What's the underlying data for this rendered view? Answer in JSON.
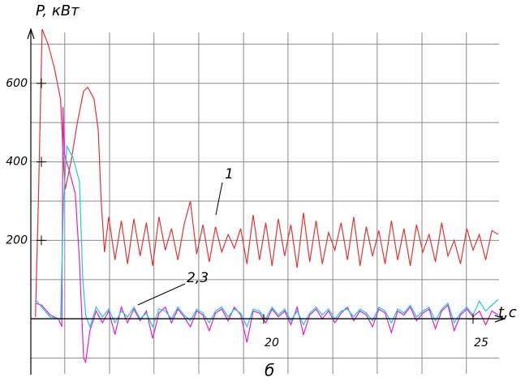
{
  "chart_data": {
    "type": "line",
    "y_label": "P, кВт",
    "x_label": "t,c",
    "annotations": [
      "1",
      "2,3",
      "б"
    ],
    "xlim": [
      14.44,
      25.62
    ],
    "ylim": [
      -140,
      740
    ],
    "xticks": [
      20,
      25
    ],
    "yticks": [
      200,
      400,
      600
    ],
    "xgrid": [
      15.25,
      16.32,
      17.38,
      18.45,
      19.52,
      20.58,
      21.65,
      22.71,
      23.78,
      24.84
    ],
    "ygrid": [
      -100,
      0,
      100,
      200,
      300,
      400,
      500,
      600,
      700
    ],
    "grid": true,
    "series": [
      {
        "color": "#e03535",
        "x": [
          14.55,
          14.62,
          14.71,
          14.85,
          15.0,
          15.15,
          15.22,
          15.26,
          15.4,
          15.55,
          15.7,
          15.8,
          15.95,
          16.05,
          16.12,
          16.2,
          16.3,
          16.45,
          16.6,
          16.75,
          16.9,
          17.05,
          17.2,
          17.35,
          17.5,
          17.65,
          17.8,
          17.95,
          18.1,
          18.25,
          18.4,
          18.55,
          18.7,
          18.85,
          19.0,
          19.15,
          19.3,
          19.45,
          19.6,
          19.75,
          19.9,
          20.05,
          20.2,
          20.35,
          20.5,
          20.65,
          20.8,
          20.95,
          21.1,
          21.25,
          21.4,
          21.55,
          21.7,
          21.85,
          22.0,
          22.15,
          22.3,
          22.45,
          22.6,
          22.75,
          22.9,
          23.05,
          23.2,
          23.35,
          23.5,
          23.65,
          23.8,
          23.95,
          24.1,
          24.25,
          24.4,
          24.55,
          24.7,
          24.85,
          25.0,
          25.15,
          25.3,
          25.45,
          25.6
        ],
        "values": [
          5,
          300,
          738,
          700,
          640,
          560,
          400,
          330,
          400,
          500,
          580,
          590,
          560,
          480,
          300,
          170,
          260,
          150,
          250,
          140,
          255,
          160,
          245,
          135,
          260,
          175,
          230,
          150,
          240,
          300,
          165,
          240,
          145,
          235,
          170,
          215,
          180,
          230,
          140,
          265,
          150,
          245,
          135,
          255,
          160,
          240,
          130,
          270,
          145,
          250,
          140,
          220,
          175,
          245,
          150,
          260,
          135,
          235,
          160,
          225,
          140,
          250,
          150,
          230,
          135,
          240,
          170,
          215,
          145,
          245,
          160,
          200,
          140,
          230,
          175,
          215,
          150,
          225,
          215
        ]
      },
      {
        "color": "#e020d0",
        "x": [
          14.55,
          14.7,
          14.9,
          15.1,
          15.18,
          15.21,
          15.24,
          15.35,
          15.5,
          15.6,
          15.7,
          15.75,
          15.85,
          16.0,
          16.15,
          16.3,
          16.45,
          16.6,
          16.75,
          16.9,
          17.05,
          17.2,
          17.35,
          17.5,
          17.65,
          17.8,
          17.95,
          18.1,
          18.25,
          18.4,
          18.55,
          18.7,
          18.85,
          19.0,
          19.15,
          19.3,
          19.45,
          19.6,
          19.75,
          19.9,
          20.05,
          20.2,
          20.35,
          20.5,
          20.65,
          20.8,
          20.95,
          21.1,
          21.25,
          21.4,
          21.55,
          21.7,
          21.85,
          22.0,
          22.15,
          22.3,
          22.45,
          22.6,
          22.75,
          22.9,
          23.05,
          23.2,
          23.35,
          23.5,
          23.65,
          23.8,
          23.95,
          24.1,
          24.25,
          24.4,
          24.55,
          24.7,
          24.85,
          25.0,
          25.15,
          25.3,
          25.45,
          25.6
        ],
        "values": [
          40,
          35,
          10,
          0,
          -20,
          540,
          420,
          380,
          320,
          150,
          -100,
          -110,
          -30,
          20,
          -10,
          20,
          -40,
          30,
          -10,
          25,
          -5,
          20,
          -50,
          15,
          30,
          -10,
          25,
          5,
          -20,
          20,
          10,
          -30,
          15,
          25,
          -5,
          30,
          10,
          -60,
          20,
          15,
          -10,
          25,
          5,
          20,
          -15,
          30,
          -40,
          10,
          25,
          0,
          20,
          -10,
          15,
          30,
          -5,
          20,
          10,
          -20,
          25,
          15,
          -35,
          20,
          10,
          30,
          -5,
          15,
          25,
          -25,
          20,
          35,
          -30,
          10,
          25,
          5,
          20,
          -15,
          20,
          10
        ]
      },
      {
        "color": "#20c8e0",
        "x": [
          14.55,
          14.7,
          14.9,
          15.15,
          15.22,
          15.3,
          15.45,
          15.6,
          15.68,
          15.75,
          15.85,
          16.0,
          16.15,
          16.3,
          16.45,
          16.6,
          16.75,
          16.9,
          17.05,
          17.2,
          17.35,
          17.5,
          17.65,
          17.8,
          17.95,
          18.1,
          18.25,
          18.4,
          18.55,
          18.7,
          18.85,
          19.0,
          19.15,
          19.3,
          19.45,
          19.6,
          19.75,
          19.9,
          20.05,
          20.2,
          20.35,
          20.5,
          20.65,
          20.8,
          20.95,
          21.1,
          21.25,
          21.4,
          21.55,
          21.7,
          21.85,
          22.0,
          22.15,
          22.3,
          22.45,
          22.6,
          22.75,
          22.9,
          23.05,
          23.2,
          23.35,
          23.5,
          23.65,
          23.8,
          23.95,
          24.1,
          24.25,
          24.4,
          24.55,
          24.7,
          24.85,
          25.0,
          25.15,
          25.3,
          25.45,
          25.6
        ],
        "values": [
          50,
          30,
          5,
          0,
          300,
          440,
          410,
          350,
          100,
          10,
          -20,
          30,
          5,
          25,
          -10,
          20,
          5,
          30,
          0,
          15,
          -20,
          25,
          20,
          0,
          30,
          10,
          -5,
          25,
          15,
          -10,
          20,
          30,
          5,
          25,
          15,
          -20,
          25,
          20,
          0,
          30,
          10,
          25,
          -5,
          20,
          -15,
          15,
          30,
          10,
          25,
          0,
          20,
          25,
          5,
          25,
          15,
          -5,
          30,
          20,
          -10,
          25,
          15,
          35,
          5,
          20,
          30,
          -5,
          25,
          40,
          -10,
          15,
          30,
          10,
          45,
          20,
          35,
          50
        ]
      }
    ]
  }
}
